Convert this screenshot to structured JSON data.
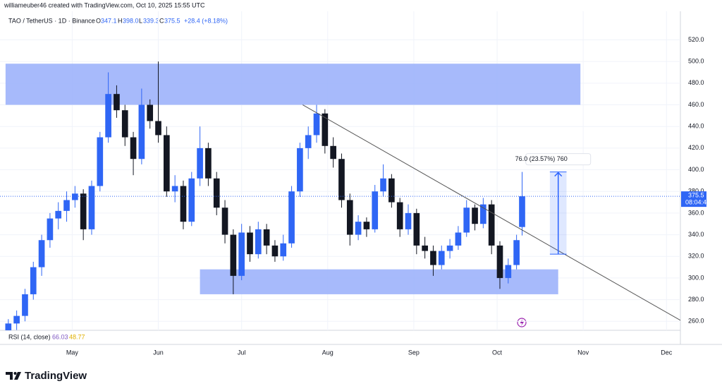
{
  "watermark": "williameuber46 created with TradingView.com, Oct 10, 2025 15:55 UTC",
  "brand": "TradingView",
  "chart_data": {
    "type": "candlestick",
    "legend": {
      "symbol": "TAO / TetherUS · 1D · Binance",
      "open_label": "O",
      "open": "347.1",
      "high_label": "H",
      "high": "398.0",
      "low_label": "L",
      "low": "339.3",
      "close_label": "C",
      "close": "375.5",
      "change": "+28.4 (+8.18%)"
    },
    "x": [
      "2025-04-08",
      "2025-04-11",
      "2025-04-14",
      "2025-04-17",
      "2025-04-20",
      "2025-04-23",
      "2025-04-26",
      "2025-04-29",
      "2025-05-02",
      "2025-05-05",
      "2025-05-08",
      "2025-05-11",
      "2025-05-14",
      "2025-05-17",
      "2025-05-20",
      "2025-05-23",
      "2025-05-26",
      "2025-05-29",
      "2025-06-01",
      "2025-06-04",
      "2025-06-07",
      "2025-06-10",
      "2025-06-13",
      "2025-06-16",
      "2025-06-19",
      "2025-06-22",
      "2025-06-25",
      "2025-06-28",
      "2025-07-01",
      "2025-07-04",
      "2025-07-07",
      "2025-07-10",
      "2025-07-13",
      "2025-07-16",
      "2025-07-19",
      "2025-07-22",
      "2025-07-25",
      "2025-07-28",
      "2025-07-31",
      "2025-08-03",
      "2025-08-06",
      "2025-08-09",
      "2025-08-12",
      "2025-08-15",
      "2025-08-18",
      "2025-08-21",
      "2025-08-24",
      "2025-08-27",
      "2025-08-30",
      "2025-09-02",
      "2025-09-05",
      "2025-09-08",
      "2025-09-11",
      "2025-09-14",
      "2025-09-17",
      "2025-09-20",
      "2025-09-23",
      "2025-09-26",
      "2025-09-29",
      "2025-10-02",
      "2025-10-05",
      "2025-10-08",
      "2025-10-10"
    ],
    "ohlc": [
      [
        250,
        262,
        246,
        258
      ],
      [
        258,
        270,
        252,
        265
      ],
      [
        265,
        290,
        260,
        285
      ],
      [
        285,
        315,
        280,
        310
      ],
      [
        310,
        340,
        302,
        335
      ],
      [
        335,
        360,
        328,
        355
      ],
      [
        355,
        370,
        345,
        362
      ],
      [
        362,
        380,
        352,
        372
      ],
      [
        372,
        385,
        365,
        378
      ],
      [
        378,
        382,
        335,
        345
      ],
      [
        345,
        390,
        340,
        385
      ],
      [
        385,
        435,
        380,
        430
      ],
      [
        430,
        490,
        425,
        470
      ],
      [
        470,
        478,
        448,
        455
      ],
      [
        455,
        460,
        422,
        430
      ],
      [
        430,
        435,
        395,
        410
      ],
      [
        410,
        475,
        405,
        460
      ],
      [
        460,
        465,
        438,
        445
      ],
      [
        445,
        500,
        425,
        432
      ],
      [
        432,
        440,
        375,
        380
      ],
      [
        380,
        395,
        370,
        385
      ],
      [
        385,
        390,
        345,
        352
      ],
      [
        352,
        398,
        348,
        392
      ],
      [
        392,
        440,
        385,
        420
      ],
      [
        420,
        425,
        385,
        392
      ],
      [
        392,
        398,
        358,
        365
      ],
      [
        365,
        372,
        332,
        340
      ],
      [
        340,
        345,
        285,
        302
      ],
      [
        302,
        350,
        298,
        342
      ],
      [
        342,
        348,
        315,
        322
      ],
      [
        322,
        352,
        318,
        345
      ],
      [
        345,
        350,
        322,
        330
      ],
      [
        330,
        335,
        315,
        320
      ],
      [
        320,
        340,
        316,
        332
      ],
      [
        332,
        385,
        328,
        380
      ],
      [
        380,
        425,
        375,
        420
      ],
      [
        420,
        440,
        410,
        432
      ],
      [
        432,
        460,
        425,
        452
      ],
      [
        452,
        456,
        415,
        422
      ],
      [
        422,
        430,
        402,
        410
      ],
      [
        410,
        415,
        365,
        372
      ],
      [
        372,
        378,
        330,
        340
      ],
      [
        340,
        358,
        335,
        352
      ],
      [
        352,
        356,
        338,
        345
      ],
      [
        345,
        386,
        342,
        380
      ],
      [
        380,
        405,
        375,
        392
      ],
      [
        392,
        396,
        365,
        370
      ],
      [
        370,
        374,
        338,
        345
      ],
      [
        345,
        368,
        340,
        360
      ],
      [
        360,
        364,
        322,
        330
      ],
      [
        330,
        338,
        318,
        325
      ],
      [
        325,
        330,
        302,
        312
      ],
      [
        312,
        330,
        308,
        325
      ],
      [
        325,
        336,
        318,
        330
      ],
      [
        330,
        348,
        326,
        342
      ],
      [
        342,
        372,
        338,
        365
      ],
      [
        365,
        368,
        344,
        350
      ],
      [
        350,
        374,
        346,
        368
      ],
      [
        368,
        372,
        322,
        330
      ],
      [
        330,
        334,
        290,
        300
      ],
      [
        300,
        318,
        295,
        312
      ],
      [
        312,
        340,
        308,
        335
      ],
      [
        347.1,
        398,
        339.3,
        375.5
      ]
    ],
    "up_color": "#2f66f5",
    "down_color": "#131722",
    "zones": [
      {
        "x": [
          "2025-04-07",
          "2025-10-31"
        ],
        "y": [
          460,
          498
        ],
        "color": "#9db2fb"
      },
      {
        "x": [
          "2025-06-16",
          "2025-10-23"
        ],
        "y": [
          285,
          308
        ],
        "color": "#9db2fb"
      }
    ],
    "trendline": {
      "x": [
        "2025-07-23",
        "2025-12-08"
      ],
      "y": [
        460,
        258
      ],
      "color": "#555555"
    },
    "measure": {
      "x": [
        "2025-10-20",
        "2025-10-26"
      ],
      "y": [
        322,
        398
      ],
      "label": "76.0 (23.57%) 760",
      "color": "#2962ff"
    },
    "last_price": 375.5,
    "countdown": "08:04:41",
    "xlim": [
      "2025-04-05",
      "2025-12-06"
    ],
    "xticks": [
      {
        "value": "2025-05-01",
        "label": "May"
      },
      {
        "value": "2025-06-01",
        "label": "Jun"
      },
      {
        "value": "2025-07-01",
        "label": "Jul"
      },
      {
        "value": "2025-08-01",
        "label": "Aug"
      },
      {
        "value": "2025-09-01",
        "label": "Sep"
      },
      {
        "value": "2025-10-01",
        "label": "Oct"
      },
      {
        "value": "2025-11-01",
        "label": "Nov"
      },
      {
        "value": "2025-12-01",
        "label": "Dec"
      }
    ],
    "ylim": [
      251.7,
      546.4
    ],
    "yticks": [
      {
        "value": 260,
        "label": "260.0"
      },
      {
        "value": 280,
        "label": "280.0"
      },
      {
        "value": 300,
        "label": "300.0"
      },
      {
        "value": 320,
        "label": "320.0"
      },
      {
        "value": 340,
        "label": "340.0"
      },
      {
        "value": 360,
        "label": "360.0"
      },
      {
        "value": 380,
        "label": "380.0"
      },
      {
        "value": 400,
        "label": "400.0"
      },
      {
        "value": 420,
        "label": "420.0"
      },
      {
        "value": 440,
        "label": "440.0"
      },
      {
        "value": 460,
        "label": "460.0"
      },
      {
        "value": 480,
        "label": "480.0"
      },
      {
        "value": 500,
        "label": "500.0"
      },
      {
        "value": 520,
        "label": "520.0"
      }
    ],
    "grid": true,
    "rsi": {
      "label": "RSI (14, close)",
      "value": "66.03",
      "signal": "48.77"
    }
  }
}
